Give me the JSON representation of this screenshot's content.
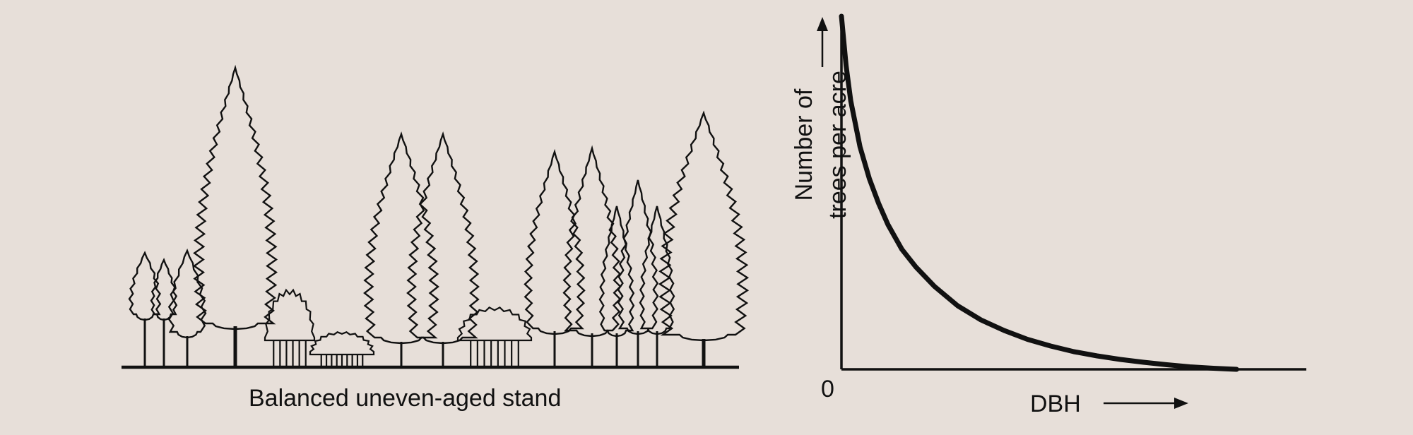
{
  "diagram": {
    "stand_caption": "Balanced uneven-aged stand"
  },
  "chart_data": {
    "type": "line",
    "xlabel": "DBH",
    "ylabel": "Number of\ntrees per acre",
    "origin_label": "0",
    "grid": false,
    "series": [
      {
        "x": [
          0.0,
          0.01,
          0.02,
          0.04,
          0.06,
          0.08,
          0.1,
          0.13,
          0.16,
          0.2,
          0.25,
          0.3,
          0.35,
          0.4,
          0.45,
          0.5,
          0.55,
          0.6,
          0.65,
          0.7,
          0.75,
          0.8,
          0.85
        ],
        "y": [
          1.0,
          0.86,
          0.76,
          0.63,
          0.54,
          0.47,
          0.41,
          0.34,
          0.29,
          0.235,
          0.18,
          0.14,
          0.11,
          0.085,
          0.066,
          0.05,
          0.038,
          0.028,
          0.02,
          0.013,
          0.007,
          0.003,
          0.0
        ]
      }
    ],
    "colors": {
      "line": "#111111",
      "background": "#e7dfd9"
    }
  }
}
